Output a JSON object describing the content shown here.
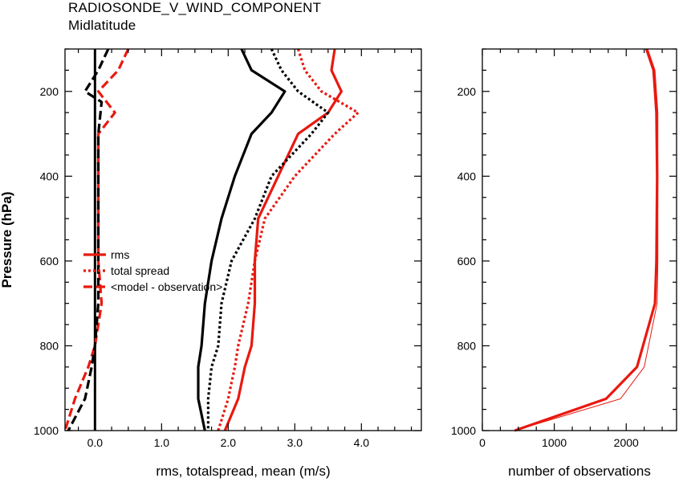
{
  "title": "RADIOSONDE_V_WIND_COMPONENT",
  "subtitle": "Midlatitude",
  "colors": {
    "black": "#000000",
    "red": "#e8190f"
  },
  "chart_data": [
    {
      "type": "line",
      "xlabel": "rms, totalspread, mean (m/s)",
      "ylabel": "Pressure (hPa)",
      "xlim": [
        -0.45,
        4.9
      ],
      "ylim": [
        100,
        1000
      ],
      "y_reversed": true,
      "x_ticks": [
        0.0,
        1.0,
        2.0,
        3.0,
        4.0
      ],
      "x_tick_labels": [
        "0.0",
        "1.0",
        "2.0",
        "3.0",
        "4.0"
      ],
      "y_ticks": [
        200,
        400,
        600,
        800,
        1000
      ],
      "y_tick_labels": [
        "200",
        "400",
        "600",
        "800",
        "1000"
      ],
      "zero_line": 0.0,
      "grid": false,
      "legend": {
        "position": "middle-left",
        "entries": [
          {
            "label": "rms",
            "style": "solid"
          },
          {
            "label": "total spread",
            "style": "dotted"
          },
          {
            "label": "<model - observation>",
            "style": "dashed"
          }
        ]
      },
      "series": [
        {
          "name": "rms",
          "color": "red",
          "style": "solid",
          "points": [
            [
              3.6,
              100
            ],
            [
              3.55,
              150
            ],
            [
              3.7,
              200
            ],
            [
              3.5,
              250
            ],
            [
              3.05,
              300
            ],
            [
              2.75,
              400
            ],
            [
              2.45,
              500
            ],
            [
              2.4,
              600
            ],
            [
              2.4,
              700
            ],
            [
              2.35,
              800
            ],
            [
              2.25,
              850
            ],
            [
              2.15,
              925
            ],
            [
              1.95,
              1000
            ]
          ]
        },
        {
          "name": "total spread",
          "color": "red",
          "style": "dotted",
          "points": [
            [
              3.05,
              100
            ],
            [
              3.15,
              150
            ],
            [
              3.4,
              200
            ],
            [
              3.95,
              250
            ],
            [
              3.6,
              300
            ],
            [
              3.0,
              400
            ],
            [
              2.55,
              500
            ],
            [
              2.4,
              600
            ],
            [
              2.3,
              700
            ],
            [
              2.15,
              800
            ],
            [
              2.1,
              850
            ],
            [
              2.0,
              925
            ],
            [
              1.85,
              1000
            ]
          ]
        },
        {
          "name": "<model - observation>",
          "color": "red",
          "style": "dashed",
          "points": [
            [
              0.5,
              100
            ],
            [
              0.35,
              150
            ],
            [
              0.05,
              200
            ],
            [
              0.3,
              250
            ],
            [
              0.05,
              300
            ],
            [
              0.05,
              400
            ],
            [
              0.05,
              500
            ],
            [
              0.05,
              600
            ],
            [
              0.1,
              700
            ],
            [
              0.0,
              800
            ],
            [
              -0.1,
              850
            ],
            [
              -0.3,
              925
            ],
            [
              -0.45,
              1000
            ]
          ]
        },
        {
          "name": "rms",
          "color": "black",
          "style": "solid",
          "points": [
            [
              2.2,
              100
            ],
            [
              2.35,
              150
            ],
            [
              2.85,
              200
            ],
            [
              2.65,
              250
            ],
            [
              2.35,
              300
            ],
            [
              2.1,
              400
            ],
            [
              1.9,
              500
            ],
            [
              1.75,
              600
            ],
            [
              1.65,
              700
            ],
            [
              1.6,
              800
            ],
            [
              1.55,
              850
            ],
            [
              1.55,
              925
            ],
            [
              1.65,
              1000
            ]
          ]
        },
        {
          "name": "total spread",
          "color": "black",
          "style": "dotted",
          "points": [
            [
              2.65,
              100
            ],
            [
              2.8,
              150
            ],
            [
              3.05,
              200
            ],
            [
              3.5,
              250
            ],
            [
              3.25,
              300
            ],
            [
              2.65,
              400
            ],
            [
              2.4,
              500
            ],
            [
              2.05,
              600
            ],
            [
              1.9,
              700
            ],
            [
              1.85,
              800
            ],
            [
              1.75,
              850
            ],
            [
              1.7,
              925
            ],
            [
              1.7,
              1000
            ]
          ]
        },
        {
          "name": "<model - observation>",
          "color": "black",
          "style": "dashed",
          "points": [
            [
              0.2,
              100
            ],
            [
              0.05,
              150
            ],
            [
              -0.15,
              200
            ],
            [
              0.1,
              225
            ],
            [
              0.05,
              300
            ],
            [
              0.05,
              400
            ],
            [
              0.05,
              500
            ],
            [
              0.05,
              600
            ],
            [
              0.05,
              700
            ],
            [
              0.0,
              800
            ],
            [
              -0.05,
              850
            ],
            [
              -0.15,
              925
            ],
            [
              -0.4,
              1000
            ]
          ]
        }
      ]
    },
    {
      "type": "line",
      "xlabel": "number of observations",
      "ylabel": "",
      "xlim": [
        0,
        2700
      ],
      "ylim": [
        100,
        1000
      ],
      "y_reversed": true,
      "x_ticks": [
        0,
        1000,
        2000
      ],
      "x_tick_labels": [
        "0",
        "1000",
        "2000"
      ],
      "y_ticks": [
        200,
        400,
        600,
        800,
        1000
      ],
      "y_tick_labels": [
        "200",
        "400",
        "600",
        "800",
        "1000"
      ],
      "grid": false,
      "series": [
        {
          "name": "",
          "color": "red",
          "style": "solid",
          "width": "thick",
          "points": [
            [
              2280,
              100
            ],
            [
              2380,
              150
            ],
            [
              2420,
              250
            ],
            [
              2430,
              400
            ],
            [
              2420,
              600
            ],
            [
              2400,
              700
            ],
            [
              2150,
              850
            ],
            [
              1720,
              925
            ],
            [
              450,
              1000
            ]
          ]
        },
        {
          "name": "",
          "color": "red",
          "style": "solid",
          "width": "thin",
          "points": [
            [
              2300,
              100
            ],
            [
              2400,
              150
            ],
            [
              2440,
              250
            ],
            [
              2440,
              400
            ],
            [
              2440,
              600
            ],
            [
              2430,
              700
            ],
            [
              2250,
              850
            ],
            [
              1920,
              925
            ],
            [
              450,
              1000
            ]
          ]
        }
      ]
    }
  ]
}
